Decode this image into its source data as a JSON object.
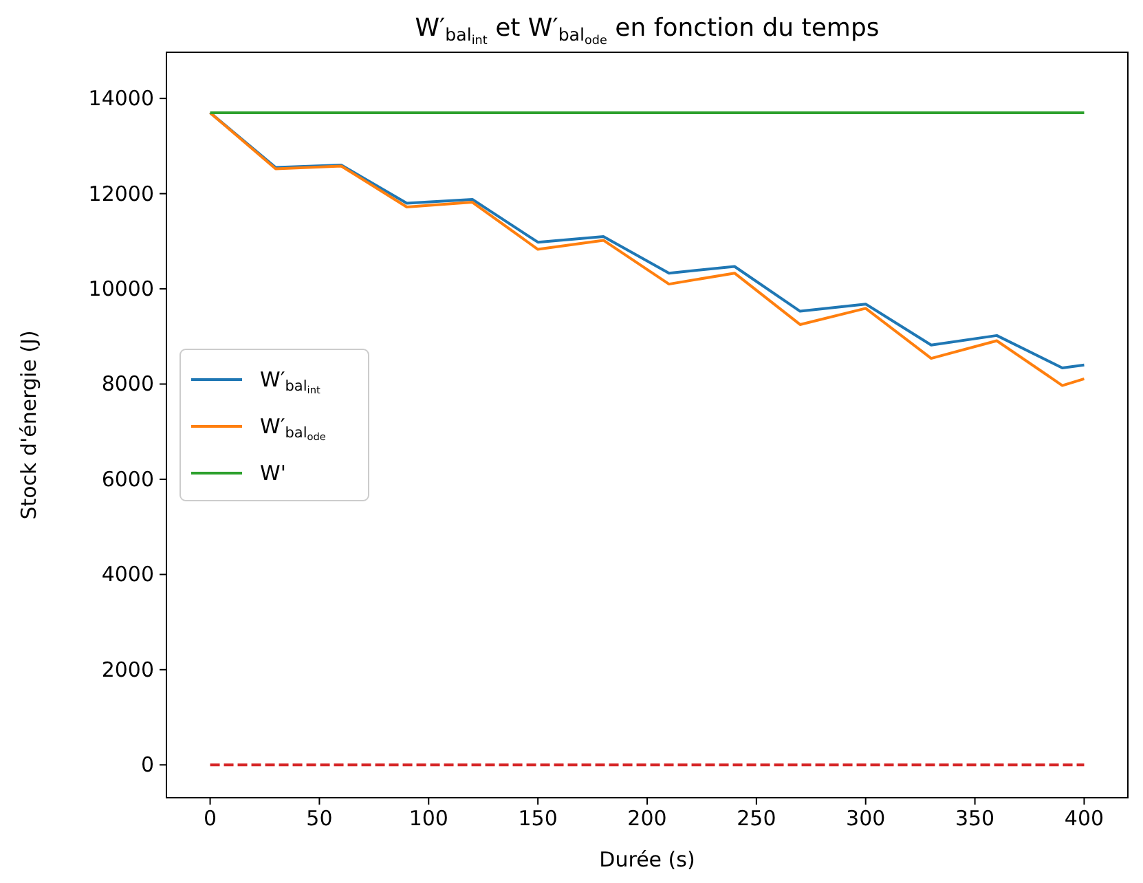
{
  "chart_data": {
    "type": "line",
    "title": "W′$_{bal}$$_{int}$ et W′$_{bal}$$_{ode}$ en fonction du temps",
    "xlabel": "Durée (s)",
    "ylabel": "Stock d'énergie (J)",
    "x": [
      0,
      30,
      60,
      90,
      120,
      150,
      180,
      210,
      240,
      270,
      300,
      330,
      360,
      390,
      400
    ],
    "series": [
      {
        "name": "W′$_{bal}$$_{int}$",
        "color": "#1f77b4",
        "values": [
          13700,
          12550,
          12600,
          11800,
          11880,
          10980,
          11100,
          10330,
          10470,
          9530,
          9680,
          8820,
          9020,
          8340,
          8400
        ]
      },
      {
        "name": "W′$_{bal}$$_{ode}$",
        "color": "#ff7f0e",
        "values": [
          13700,
          12520,
          12580,
          11720,
          11820,
          10830,
          11020,
          10100,
          10330,
          9250,
          9590,
          8540,
          8910,
          7970,
          8110
        ]
      },
      {
        "name": "W'",
        "color": "#2ca02c",
        "values": [
          13700,
          13700,
          13700,
          13700,
          13700,
          13700,
          13700,
          13700,
          13700,
          13700,
          13700,
          13700,
          13700,
          13700,
          13700
        ]
      },
      {
        "color": "#d62728",
        "values": [
          0,
          0,
          0,
          0,
          0,
          0,
          0,
          0,
          0,
          0,
          0,
          0,
          0,
          0,
          0
        ],
        "line_style": "dashed"
      }
    ],
    "xlim": [
      -20,
      420
    ],
    "xticks": [
      0,
      50,
      100,
      150,
      200,
      250,
      300,
      350,
      400
    ],
    "ylim": [
      -690,
      14970
    ],
    "yticks": [
      0,
      2000,
      4000,
      6000,
      8000,
      10000,
      12000,
      14000
    ],
    "grid": false,
    "legend": "center left",
    "line_style": "solid",
    "marker": "none"
  }
}
